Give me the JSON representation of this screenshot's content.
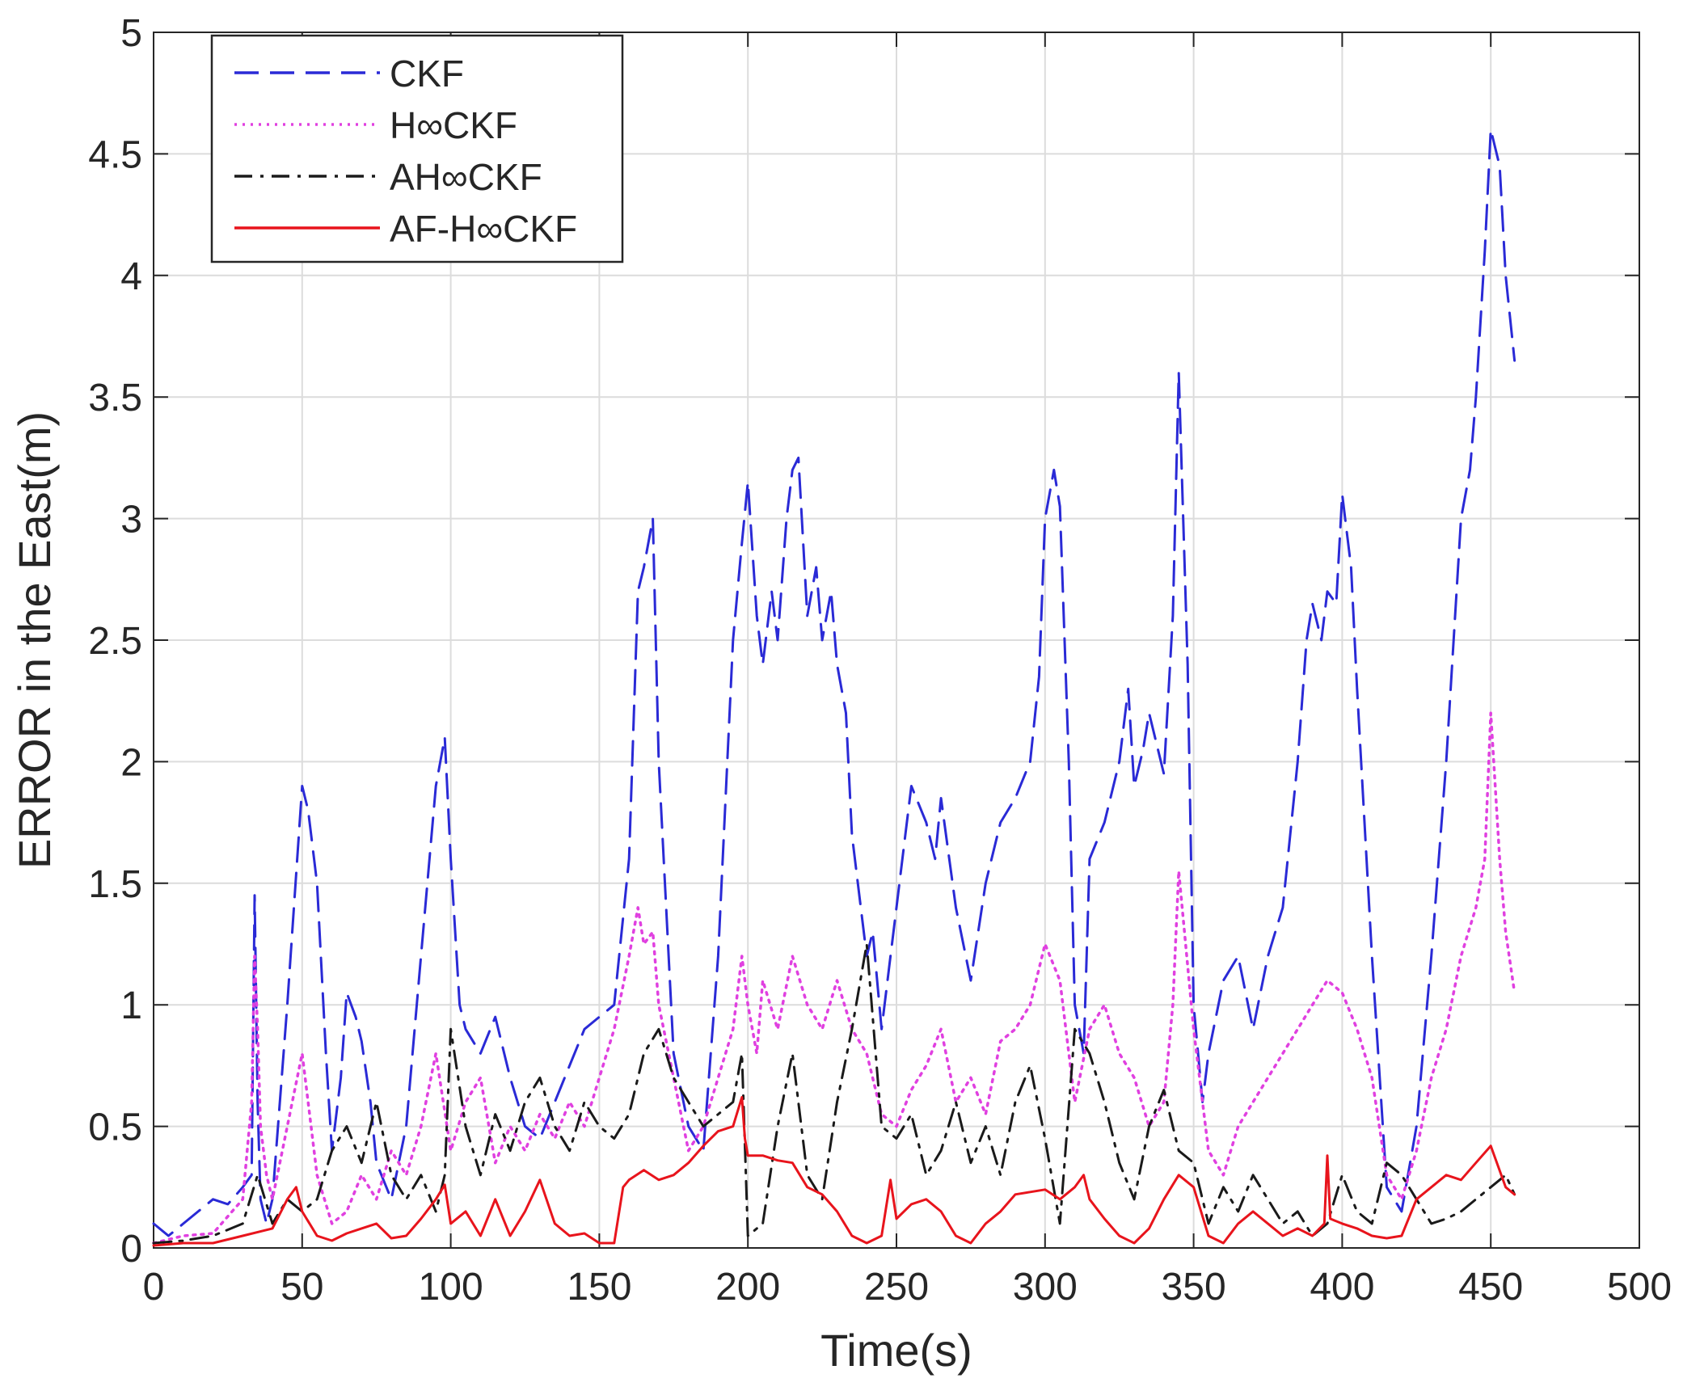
{
  "chart_data": {
    "type": "line",
    "xlabel": "Time(s)",
    "ylabel": "ERROR in the East(m)",
    "xlim": [
      0,
      500
    ],
    "ylim": [
      0,
      5
    ],
    "xticks": [
      "0",
      "50",
      "100",
      "150",
      "200",
      "250",
      "300",
      "350",
      "400",
      "450",
      "500"
    ],
    "yticks": [
      "0",
      "0.5",
      "1",
      "1.5",
      "2",
      "2.5",
      "3",
      "3.5",
      "4",
      "4.5",
      "5"
    ],
    "grid": true,
    "legend_position": "top-left",
    "series": [
      {
        "name": "CKF",
        "color": "#2a2ad6",
        "style": "dashed",
        "x": [
          0,
          5,
          10,
          15,
          20,
          25,
          30,
          33,
          34,
          35,
          36,
          38,
          40,
          45,
          50,
          52,
          55,
          58,
          60,
          63,
          65,
          68,
          70,
          73,
          75,
          80,
          85,
          90,
          95,
          98,
          100,
          103,
          105,
          110,
          115,
          120,
          125,
          130,
          135,
          140,
          145,
          150,
          155,
          160,
          163,
          165,
          168,
          170,
          175,
          180,
          185,
          190,
          195,
          198,
          200,
          203,
          205,
          208,
          210,
          213,
          215,
          217,
          220,
          223,
          225,
          228,
          230,
          233,
          235,
          240,
          242,
          245,
          248,
          250,
          253,
          255,
          260,
          263,
          265,
          270,
          275,
          280,
          285,
          290,
          295,
          298,
          300,
          303,
          305,
          308,
          310,
          313,
          315,
          320,
          325,
          328,
          330,
          333,
          335,
          340,
          343,
          345,
          348,
          350,
          353,
          355,
          360,
          365,
          370,
          375,
          380,
          385,
          388,
          390,
          393,
          395,
          398,
          400,
          403,
          405,
          410,
          415,
          420,
          425,
          430,
          435,
          440,
          443,
          445,
          448,
          450,
          453,
          455,
          458
        ],
        "y": [
          0.1,
          0.05,
          0.1,
          0.15,
          0.2,
          0.18,
          0.25,
          0.3,
          1.45,
          0.6,
          0.2,
          0.1,
          0.2,
          1.0,
          1.9,
          1.8,
          1.5,
          0.8,
          0.4,
          0.7,
          1.05,
          0.95,
          0.85,
          0.6,
          0.35,
          0.2,
          0.5,
          1.2,
          1.9,
          2.1,
          1.6,
          1.0,
          0.9,
          0.8,
          0.95,
          0.7,
          0.5,
          0.45,
          0.6,
          0.75,
          0.9,
          0.95,
          1.0,
          1.6,
          2.7,
          2.8,
          3.0,
          2.0,
          0.8,
          0.5,
          0.4,
          1.2,
          2.5,
          2.9,
          3.15,
          2.6,
          2.4,
          2.7,
          2.5,
          3.0,
          3.2,
          3.25,
          2.6,
          2.8,
          2.5,
          2.7,
          2.4,
          2.2,
          1.7,
          1.2,
          1.3,
          0.9,
          1.2,
          1.4,
          1.7,
          1.9,
          1.75,
          1.6,
          1.85,
          1.4,
          1.1,
          1.5,
          1.75,
          1.85,
          2.0,
          2.35,
          3.0,
          3.2,
          3.05,
          2.0,
          1.0,
          0.8,
          1.6,
          1.75,
          2.0,
          2.3,
          1.9,
          2.05,
          2.2,
          1.95,
          2.6,
          3.6,
          2.4,
          1.0,
          0.6,
          0.8,
          1.1,
          1.2,
          0.9,
          1.2,
          1.4,
          2.0,
          2.5,
          2.65,
          2.5,
          2.7,
          2.65,
          3.1,
          2.8,
          2.3,
          1.2,
          0.25,
          0.15,
          0.5,
          1.2,
          2.0,
          3.0,
          3.2,
          3.5,
          4.1,
          4.6,
          4.45,
          4.0,
          3.65
        ]
      },
      {
        "name": "H∞CKF",
        "color": "#e040e0",
        "style": "dotted",
        "x": [
          0,
          10,
          20,
          30,
          33,
          34,
          35,
          36,
          38,
          40,
          45,
          50,
          55,
          60,
          65,
          70,
          75,
          80,
          85,
          90,
          95,
          100,
          105,
          110,
          115,
          120,
          125,
          130,
          135,
          140,
          145,
          150,
          155,
          160,
          163,
          165,
          168,
          170,
          175,
          180,
          185,
          190,
          195,
          198,
          200,
          203,
          205,
          210,
          215,
          220,
          225,
          230,
          235,
          240,
          245,
          250,
          255,
          260,
          265,
          270,
          275,
          280,
          285,
          290,
          295,
          300,
          305,
          310,
          315,
          320,
          325,
          330,
          335,
          340,
          343,
          345,
          350,
          355,
          360,
          365,
          370,
          375,
          380,
          385,
          390,
          395,
          400,
          405,
          410,
          415,
          420,
          425,
          430,
          435,
          440,
          445,
          448,
          450,
          453,
          455,
          458
        ],
        "y": [
          0.02,
          0.05,
          0.06,
          0.2,
          0.6,
          1.2,
          0.9,
          0.5,
          0.3,
          0.2,
          0.5,
          0.8,
          0.3,
          0.1,
          0.15,
          0.3,
          0.2,
          0.4,
          0.3,
          0.5,
          0.8,
          0.4,
          0.6,
          0.7,
          0.35,
          0.5,
          0.4,
          0.55,
          0.45,
          0.6,
          0.5,
          0.7,
          0.9,
          1.2,
          1.4,
          1.25,
          1.3,
          1.0,
          0.7,
          0.4,
          0.5,
          0.7,
          0.9,
          1.2,
          1.0,
          0.8,
          1.1,
          0.9,
          1.2,
          1.0,
          0.9,
          1.1,
          0.9,
          0.8,
          0.55,
          0.5,
          0.65,
          0.75,
          0.9,
          0.6,
          0.7,
          0.55,
          0.85,
          0.9,
          1.0,
          1.25,
          1.1,
          0.6,
          0.9,
          1.0,
          0.8,
          0.7,
          0.5,
          0.6,
          1.0,
          1.55,
          0.9,
          0.4,
          0.3,
          0.5,
          0.6,
          0.7,
          0.8,
          0.9,
          1.0,
          1.1,
          1.05,
          0.9,
          0.7,
          0.3,
          0.2,
          0.4,
          0.7,
          0.9,
          1.2,
          1.4,
          1.6,
          2.2,
          1.6,
          1.3,
          1.05
        ]
      },
      {
        "name": "AH∞CKF",
        "color": "#1a1a1a",
        "style": "dashdot",
        "x": [
          0,
          10,
          20,
          30,
          35,
          40,
          45,
          50,
          55,
          60,
          65,
          70,
          75,
          80,
          85,
          90,
          95,
          98,
          100,
          105,
          110,
          115,
          120,
          125,
          130,
          135,
          140,
          145,
          150,
          155,
          160,
          165,
          170,
          175,
          180,
          185,
          190,
          195,
          198,
          200,
          205,
          210,
          215,
          220,
          225,
          230,
          235,
          240,
          242,
          245,
          250,
          255,
          260,
          265,
          270,
          275,
          280,
          285,
          290,
          295,
          300,
          305,
          310,
          315,
          320,
          325,
          330,
          335,
          340,
          345,
          350,
          355,
          360,
          365,
          370,
          375,
          380,
          385,
          390,
          395,
          400,
          405,
          410,
          415,
          420,
          425,
          430,
          435,
          440,
          445,
          450,
          455,
          458
        ],
        "y": [
          0.02,
          0.03,
          0.05,
          0.1,
          0.3,
          0.1,
          0.2,
          0.15,
          0.2,
          0.4,
          0.5,
          0.35,
          0.6,
          0.3,
          0.2,
          0.3,
          0.15,
          0.3,
          0.9,
          0.5,
          0.3,
          0.55,
          0.4,
          0.6,
          0.7,
          0.5,
          0.4,
          0.6,
          0.5,
          0.45,
          0.55,
          0.8,
          0.9,
          0.7,
          0.6,
          0.5,
          0.55,
          0.6,
          0.8,
          0.05,
          0.1,
          0.5,
          0.8,
          0.3,
          0.2,
          0.6,
          0.9,
          1.25,
          0.95,
          0.5,
          0.45,
          0.55,
          0.3,
          0.4,
          0.6,
          0.35,
          0.5,
          0.3,
          0.6,
          0.75,
          0.45,
          0.1,
          0.9,
          0.8,
          0.6,
          0.35,
          0.2,
          0.5,
          0.65,
          0.4,
          0.35,
          0.1,
          0.25,
          0.15,
          0.3,
          0.2,
          0.1,
          0.15,
          0.05,
          0.1,
          0.3,
          0.15,
          0.1,
          0.35,
          0.3,
          0.2,
          0.1,
          0.12,
          0.15,
          0.2,
          0.25,
          0.3,
          0.22
        ]
      },
      {
        "name": "AF-H∞CKF",
        "color": "#e8141c",
        "style": "solid",
        "x": [
          0,
          10,
          20,
          30,
          40,
          45,
          48,
          50,
          55,
          60,
          65,
          70,
          75,
          80,
          85,
          90,
          95,
          98,
          100,
          105,
          110,
          115,
          120,
          125,
          130,
          135,
          140,
          145,
          150,
          155,
          158,
          160,
          165,
          170,
          175,
          180,
          185,
          190,
          195,
          198,
          199,
          200,
          205,
          210,
          215,
          220,
          225,
          230,
          235,
          240,
          245,
          248,
          250,
          255,
          260,
          265,
          270,
          275,
          280,
          285,
          290,
          295,
          300,
          305,
          310,
          313,
          315,
          320,
          325,
          330,
          335,
          340,
          345,
          350,
          355,
          360,
          365,
          370,
          375,
          380,
          385,
          390,
          394,
          395,
          396,
          400,
          405,
          410,
          415,
          420,
          425,
          430,
          435,
          440,
          445,
          450,
          455,
          458
        ],
        "y": [
          0.01,
          0.02,
          0.02,
          0.05,
          0.08,
          0.2,
          0.25,
          0.15,
          0.05,
          0.03,
          0.06,
          0.08,
          0.1,
          0.04,
          0.05,
          0.12,
          0.2,
          0.26,
          0.1,
          0.15,
          0.05,
          0.2,
          0.05,
          0.15,
          0.28,
          0.1,
          0.05,
          0.06,
          0.02,
          0.02,
          0.25,
          0.28,
          0.32,
          0.28,
          0.3,
          0.35,
          0.42,
          0.48,
          0.5,
          0.62,
          0.45,
          0.38,
          0.38,
          0.36,
          0.35,
          0.25,
          0.22,
          0.15,
          0.05,
          0.02,
          0.05,
          0.28,
          0.12,
          0.18,
          0.2,
          0.15,
          0.05,
          0.02,
          0.1,
          0.15,
          0.22,
          0.23,
          0.24,
          0.2,
          0.25,
          0.3,
          0.2,
          0.12,
          0.05,
          0.02,
          0.08,
          0.2,
          0.3,
          0.25,
          0.05,
          0.02,
          0.1,
          0.15,
          0.1,
          0.05,
          0.08,
          0.05,
          0.1,
          0.38,
          0.12,
          0.1,
          0.08,
          0.05,
          0.04,
          0.05,
          0.2,
          0.25,
          0.3,
          0.28,
          0.35,
          0.42,
          0.25,
          0.22
        ]
      }
    ]
  }
}
